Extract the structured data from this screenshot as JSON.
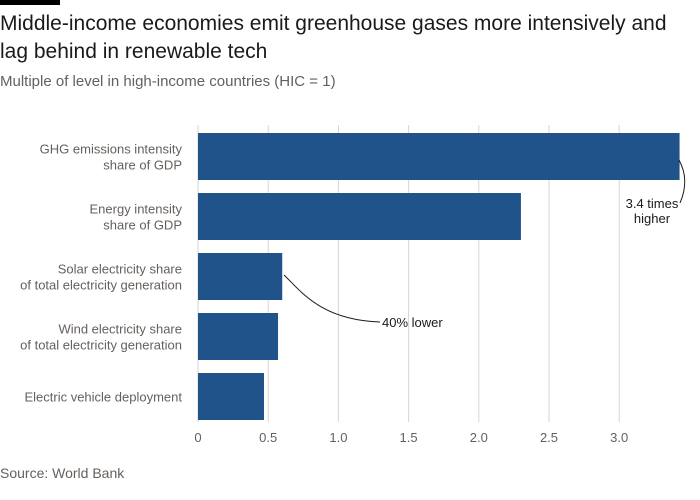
{
  "header": {
    "title": "Middle-income economies emit greenhouse gases more intensively and lag behind in renewable tech",
    "subtitle": "Multiple of level in high-income countries (HIC = 1)"
  },
  "footer": {
    "source": "Source: World Bank"
  },
  "colors": {
    "bar": "#1f538a",
    "grid": "#d9d6d2",
    "text": "#33302e",
    "muted": "#66605c"
  },
  "chart_data": {
    "type": "bar",
    "orientation": "horizontal",
    "categories": [
      [
        "GHG emissions intensity",
        "share of GDP"
      ],
      [
        "Energy intensity",
        "share of GDP"
      ],
      [
        "Solar electricity share",
        "of total electricity generation"
      ],
      [
        "Wind electricity share",
        "of total electricity generation"
      ],
      [
        "Electric vehicle deployment"
      ]
    ],
    "values": [
      3.43,
      2.3,
      0.6,
      0.57,
      0.47
    ],
    "xlim": [
      0,
      3.5
    ],
    "xticks": [
      0,
      0.5,
      1.0,
      1.5,
      2.0,
      2.5,
      3.0
    ],
    "xtick_labels": [
      "0",
      "0.5",
      "1.0",
      "1.5",
      "2.0",
      "2.5",
      "3.0"
    ],
    "grid": true,
    "annotations": [
      {
        "lines": [
          "3.4 times",
          "higher"
        ],
        "target_category": 0
      },
      {
        "lines": [
          "40% lower"
        ],
        "target_category": 2
      }
    ]
  }
}
